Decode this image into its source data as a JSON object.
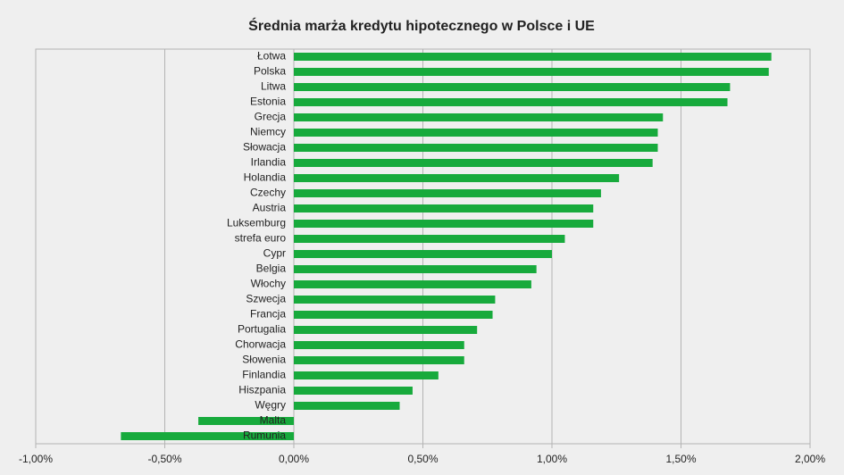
{
  "chart_data": {
    "type": "barh",
    "title": "Średnia marża kredytu hipotecznego w Polsce i UE",
    "categories": [
      "Łotwa",
      "Polska",
      "Litwa",
      "Estonia",
      "Grecja",
      "Niemcy",
      "Słowacja",
      "Irlandia",
      "Holandia",
      "Czechy",
      "Austria",
      "Luksemburg",
      "strefa euro",
      "Cypr",
      "Belgia",
      "Włochy",
      "Szwecja",
      "Francja",
      "Portugalia",
      "Chorwacja",
      "Słowenia",
      "Finlandia",
      "Hiszpania",
      "Węgry",
      "Malta",
      "Rumunia"
    ],
    "values": [
      1.85,
      1.84,
      1.69,
      1.68,
      1.43,
      1.41,
      1.41,
      1.39,
      1.26,
      1.19,
      1.16,
      1.16,
      1.05,
      1.0,
      0.94,
      0.92,
      0.78,
      0.77,
      0.71,
      0.66,
      0.66,
      0.56,
      0.46,
      0.41,
      -0.37,
      -0.67
    ],
    "color": "#17aa3c",
    "xlim": [
      -1,
      2
    ],
    "xticks": [
      {
        "value": -1,
        "label": "-1,00%"
      },
      {
        "value": -0.5,
        "label": "-0,50%"
      },
      {
        "value": 0,
        "label": "0,00%"
      },
      {
        "value": 0.5,
        "label": "0,50%"
      },
      {
        "value": 1,
        "label": "1,00%"
      },
      {
        "value": 1.5,
        "label": "1,50%"
      },
      {
        "value": 2,
        "label": "2,00%"
      }
    ],
    "grid": true
  }
}
